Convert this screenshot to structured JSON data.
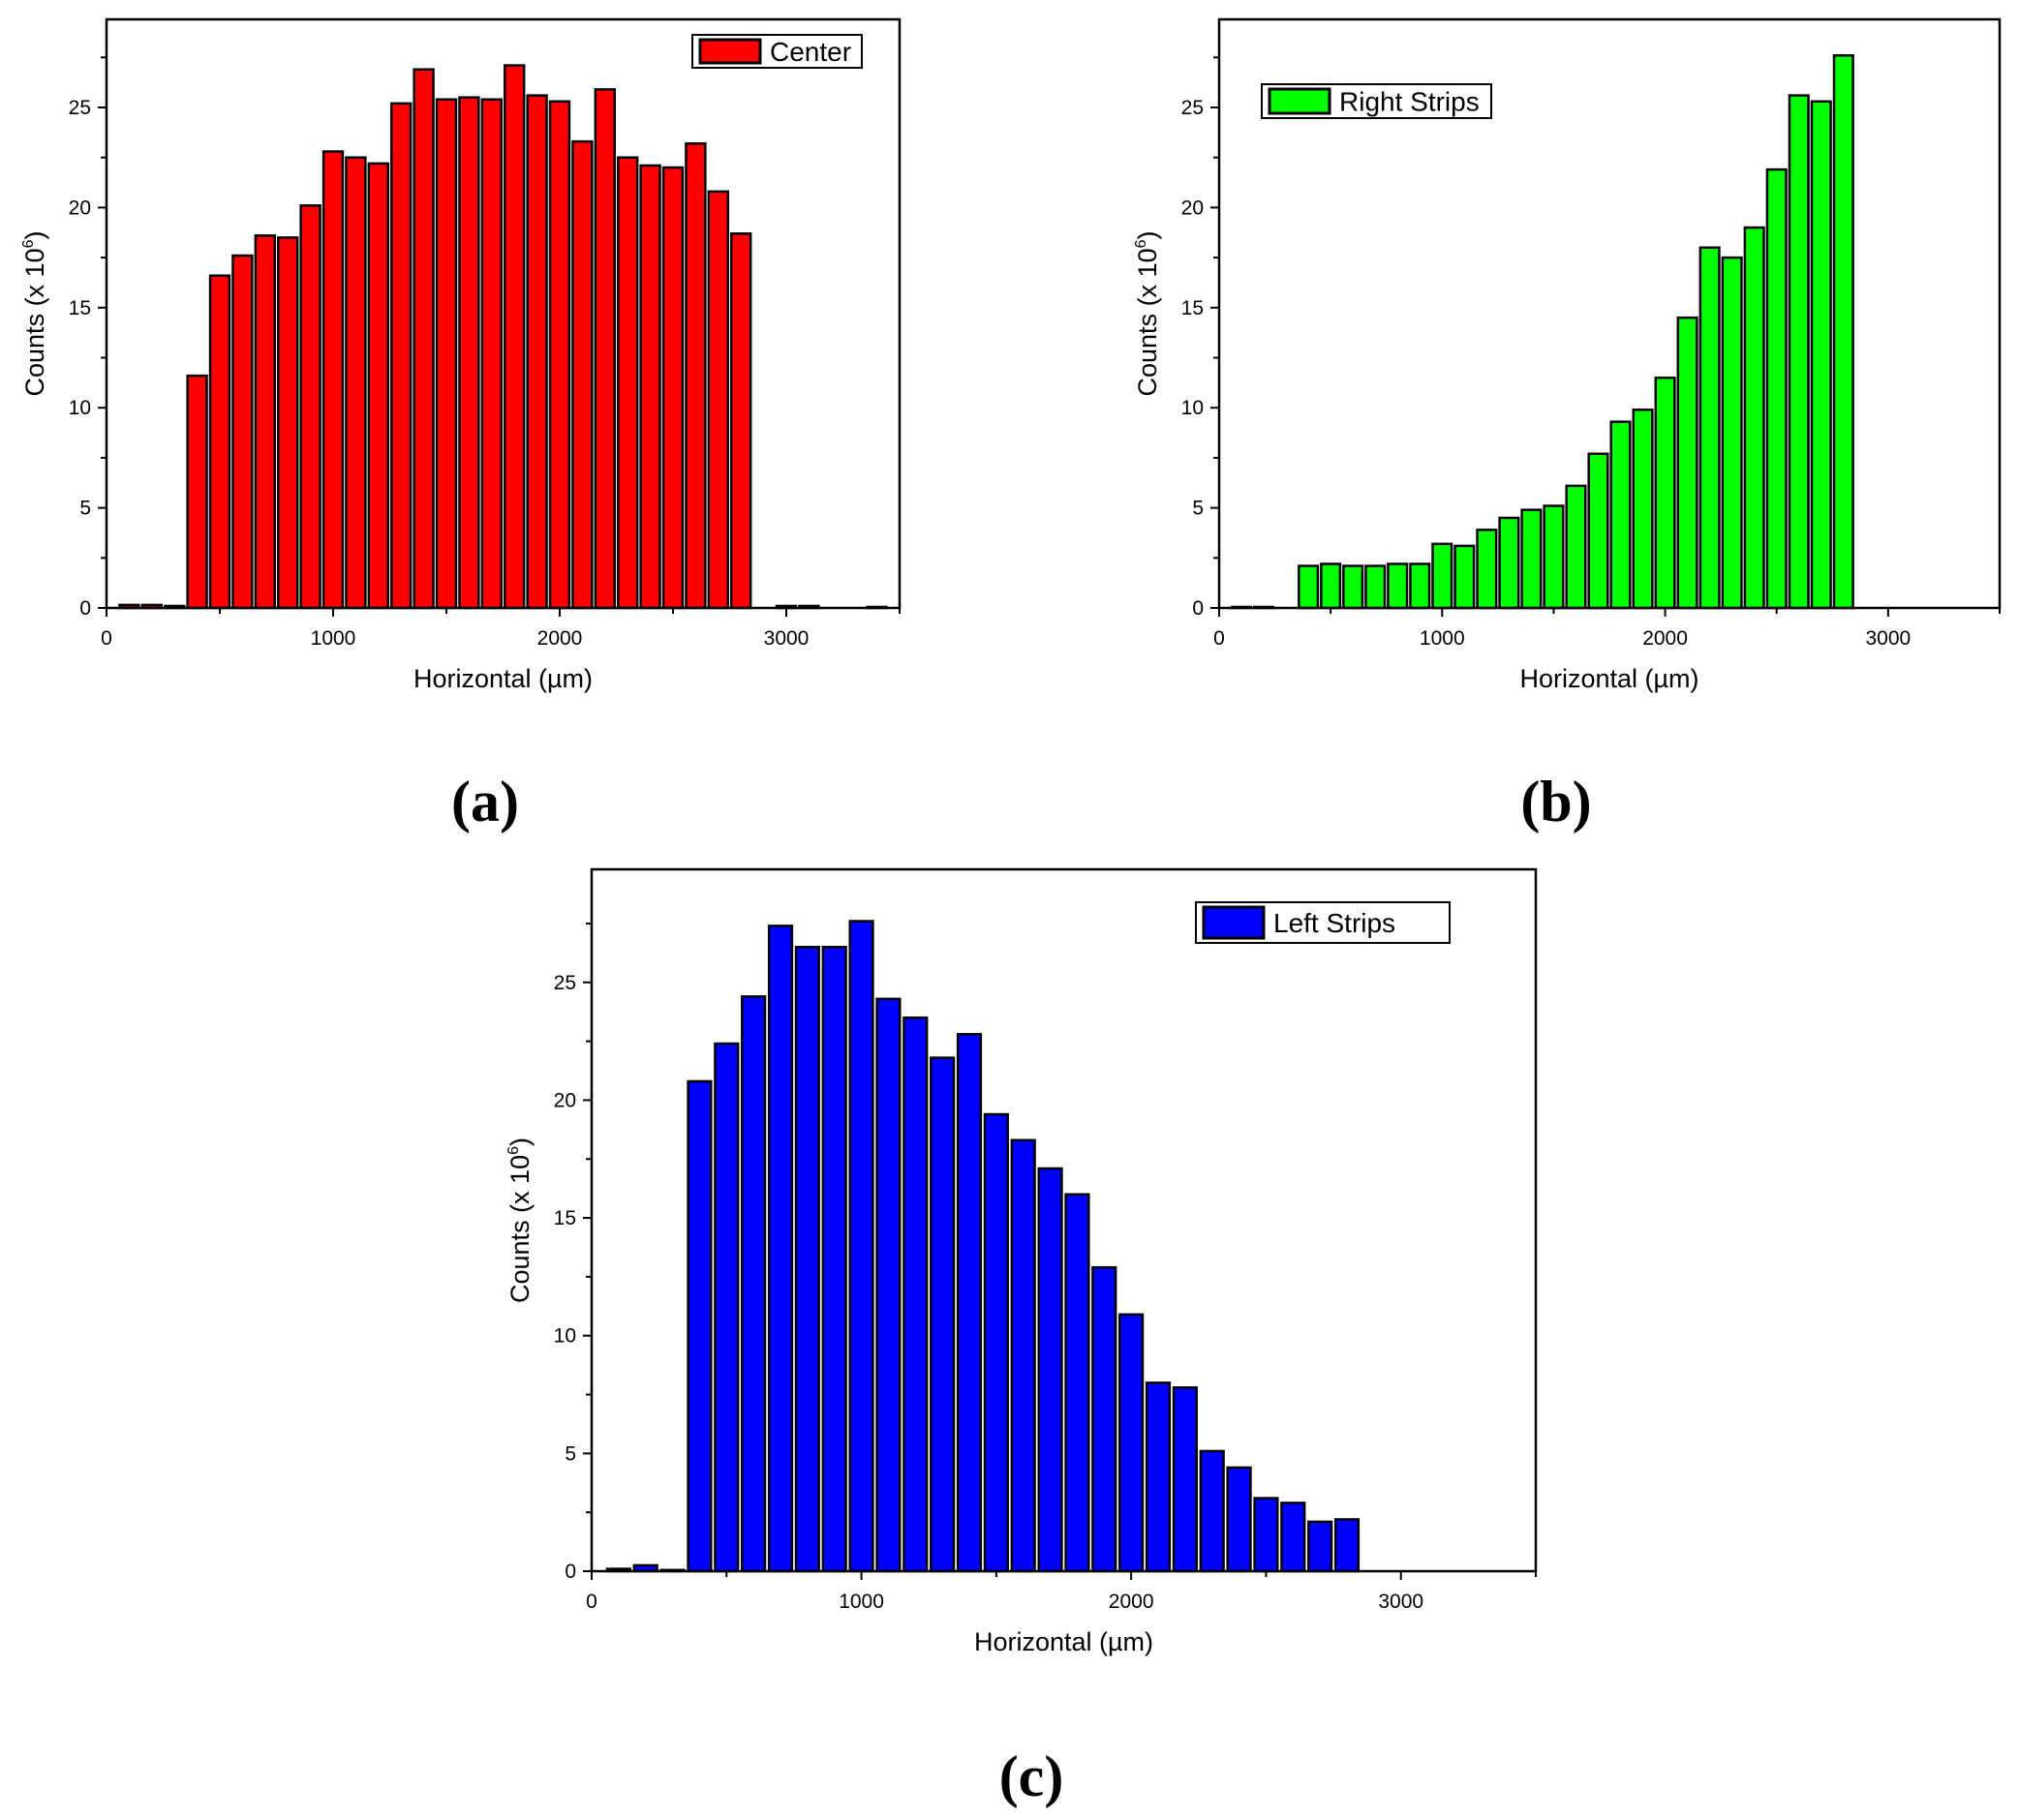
{
  "chart_data": [
    {
      "type": "bar",
      "panel_label": "(a)",
      "legend": "Center",
      "color": "#ff0000",
      "xlabel": "Horizontal (µm)",
      "ylabel": "Counts (x 10",
      "ylabel_sup": "6",
      "ylabel_close": ")",
      "xlim": [
        0,
        3500
      ],
      "ylim": [
        0,
        29.4
      ],
      "xticks": [
        0,
        1000,
        2000,
        3000
      ],
      "yticks": [
        0,
        5,
        10,
        15,
        20,
        25
      ],
      "legend_position": "top-right",
      "x": [
        100,
        200,
        300,
        400,
        500,
        600,
        700,
        800,
        900,
        1000,
        1100,
        1200,
        1300,
        1400,
        1500,
        1600,
        1700,
        1800,
        1900,
        2000,
        2100,
        2200,
        2300,
        2400,
        2500,
        2600,
        2700,
        2800,
        3000,
        3100,
        3400
      ],
      "values": [
        0.15,
        0.15,
        0.1,
        11.6,
        16.6,
        17.6,
        18.6,
        18.5,
        20.1,
        22.8,
        22.5,
        22.2,
        25.2,
        26.9,
        25.4,
        25.5,
        25.4,
        27.1,
        25.6,
        25.3,
        23.3,
        25.9,
        22.5,
        22.1,
        22.0,
        23.2,
        20.8,
        18.7,
        0.1,
        0.1,
        0.05
      ]
    },
    {
      "type": "bar",
      "panel_label": "(b)",
      "legend": "Right Strips",
      "color": "#00ff00",
      "xlabel": "Horizontal (µm)",
      "ylabel": "Counts (x 10",
      "ylabel_sup": "6",
      "ylabel_close": ")",
      "xlim": [
        0,
        3500
      ],
      "ylim": [
        0,
        29.4
      ],
      "xticks": [
        0,
        1000,
        2000,
        3000
      ],
      "yticks": [
        0,
        5,
        10,
        15,
        20,
        25
      ],
      "legend_position": "top-left",
      "x": [
        100,
        200,
        400,
        500,
        600,
        700,
        800,
        900,
        1000,
        1100,
        1200,
        1300,
        1400,
        1500,
        1600,
        1700,
        1800,
        1900,
        2000,
        2100,
        2200,
        2300,
        2400,
        2500,
        2600,
        2700,
        2800
      ],
      "values": [
        0.05,
        0.05,
        2.1,
        2.2,
        2.1,
        2.1,
        2.2,
        2.2,
        3.2,
        3.1,
        3.9,
        4.5,
        4.9,
        5.1,
        6.1,
        7.7,
        9.3,
        9.9,
        11.5,
        14.5,
        18.0,
        17.5,
        19.0,
        21.9,
        25.6,
        25.3,
        27.6
      ]
    },
    {
      "type": "bar",
      "panel_label": "(c)",
      "legend": "Left Strips",
      "color": "#0000ff",
      "xlabel": "Horizontal (µm)",
      "ylabel": "Counts (x 10",
      "ylabel_sup": "6",
      "ylabel_close": ")",
      "xlim": [
        0,
        3500
      ],
      "ylim": [
        0,
        29.8
      ],
      "xticks": [
        0,
        1000,
        2000,
        3000
      ],
      "yticks": [
        0,
        5,
        10,
        15,
        20,
        25
      ],
      "legend_position": "top-right",
      "x": [
        100,
        200,
        300,
        400,
        500,
        600,
        700,
        800,
        900,
        1000,
        1100,
        1200,
        1300,
        1400,
        1500,
        1600,
        1700,
        1800,
        1900,
        2000,
        2100,
        2200,
        2300,
        2400,
        2500,
        2600,
        2700,
        2800
      ],
      "values": [
        0.1,
        0.25,
        0.05,
        20.8,
        22.4,
        24.4,
        27.4,
        26.5,
        26.5,
        27.6,
        24.3,
        23.5,
        21.8,
        22.8,
        19.4,
        18.3,
        17.1,
        16.0,
        12.9,
        10.9,
        8.0,
        7.8,
        5.1,
        4.4,
        3.1,
        2.9,
        2.1,
        2.2
      ]
    }
  ]
}
